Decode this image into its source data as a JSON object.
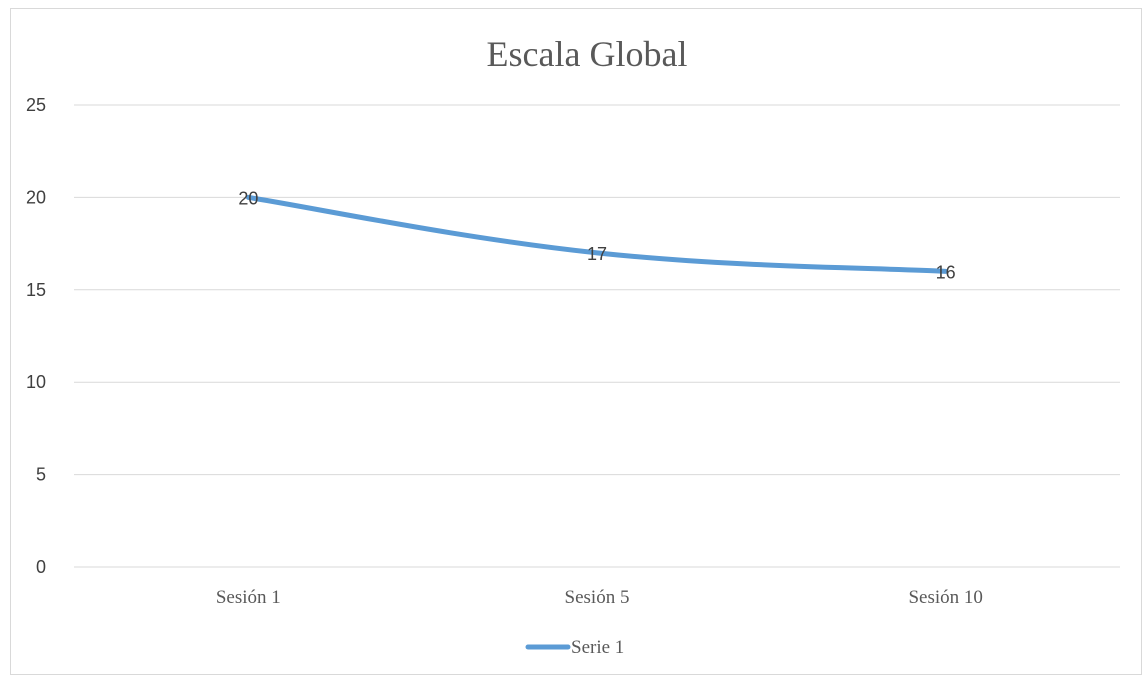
{
  "chart_data": {
    "type": "line",
    "title": "Escala Global",
    "categories": [
      "Sesión 1",
      "Sesión 5",
      "Sesión 10"
    ],
    "series": [
      {
        "name": "Serie 1",
        "values": [
          20,
          17,
          16
        ],
        "color": "#5b9bd5"
      }
    ],
    "y_ticks": [
      "0",
      "5",
      "10",
      "15",
      "20",
      "25"
    ],
    "ylim": [
      0,
      25
    ],
    "grid": true,
    "data_labels": true,
    "legend_position": "bottom"
  }
}
